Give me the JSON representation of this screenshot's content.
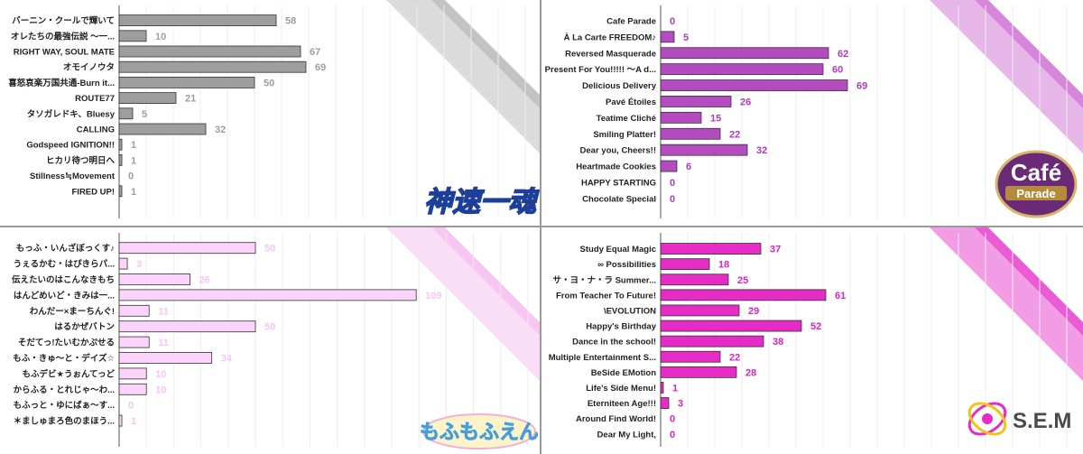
{
  "chart_data": [
    {
      "type": "bar",
      "orientation": "horizontal",
      "unit": "神速一魂",
      "color": "#9e9e9e",
      "label_color": "#9e9e9e",
      "categories": [
        "バーニン・クールで輝いて",
        "オレたちの最強伝説 ～一...",
        "RIGHT WAY, SOUL MATE",
        "オモイノウタ",
        "喜怒哀楽万国共通-Burn it...",
        "ROUTE77",
        "タソガレドキ、Bluesy",
        "CALLING",
        "Godspeed IGNITION!!",
        "ヒカリ待つ明日へ",
        "Stillness≒Movement",
        "FIRED UP!"
      ],
      "values": [
        58,
        10,
        67,
        69,
        50,
        21,
        5,
        32,
        1,
        1,
        0,
        1
      ],
      "xlim": [
        0,
        110
      ],
      "logo_text": "神速一魂"
    },
    {
      "type": "bar",
      "orientation": "horizontal",
      "unit": "Café Parade",
      "color": "#b54bc0",
      "label_color": "#b03ac0",
      "categories": [
        "Cafe Parade",
        "À La Carte FREEDOM♪",
        "Reversed Masquerade",
        "Present For You!!!!! ～A d...",
        "Delicious Delivery",
        "Pavé Étoiles",
        "Teatime Cliché",
        "Smiling Platter!",
        "Dear you, Cheers!!",
        "Heartmade Cookies",
        "HAPPY STARTING",
        "Chocolate Special"
      ],
      "values": [
        0,
        5,
        62,
        60,
        69,
        26,
        15,
        22,
        32,
        6,
        0,
        0
      ],
      "xlim": [
        0,
        110
      ],
      "logo_text": [
        "Café",
        "Parade"
      ]
    },
    {
      "type": "bar",
      "orientation": "horizontal",
      "unit": "もふもふえん",
      "color": "#fcd3fa",
      "label_color": "#f9c5f5",
      "categories": [
        "もっふ・いんざぼっくす♪",
        "うぇるかむ・はぴきらパ...",
        "伝えたいのはこんなきもち",
        "はんどめいど・きみは一...",
        "わんだー×まーちんぐ!",
        "はるかぜバトン",
        "そだてっ!たいむかぷせる",
        "もふ・きゅ～と・デイズ☆",
        "もふデビ★うぉんてっど",
        "からふる・とれじゃ～わ...",
        "もふっと・ゆにばぁ～す...",
        "＊ましゅまろ色のまほう..."
      ],
      "values": [
        50,
        3,
        26,
        109,
        11,
        50,
        11,
        34,
        10,
        10,
        0,
        1
      ],
      "xlim": [
        0,
        110
      ],
      "logo_text": "もふもふえん"
    },
    {
      "type": "bar",
      "orientation": "horizontal",
      "unit": "S.E.M",
      "color": "#e62bc7",
      "label_color": "#e021c3",
      "categories": [
        "Study Equal Magic",
        "∞ Possibilities",
        "サ・ヨ・ナ・ラ Summer...",
        "From Teacher To Future!",
        "\\EVOLUTION",
        "Happy's Birthday",
        "Dance in the school!",
        "Multiple Entertainment S...",
        "BeSide EMotion",
        "Life's Side Menu!",
        "Eterniteen Age!!!",
        "Around Find World!",
        "Dear My Light,"
      ],
      "values": [
        37,
        18,
        25,
        61,
        29,
        52,
        38,
        22,
        28,
        1,
        3,
        0,
        0
      ],
      "xlim": [
        0,
        110
      ],
      "logo_text": "S.E.M"
    }
  ]
}
